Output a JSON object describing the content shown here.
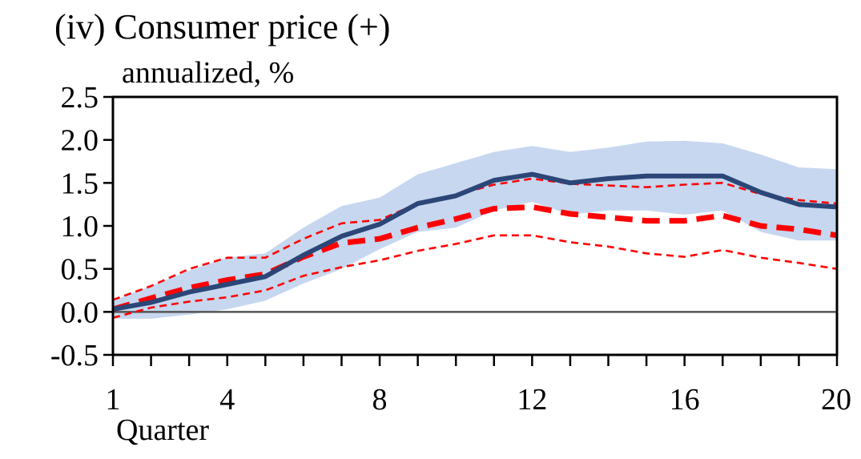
{
  "chart_data": {
    "type": "line",
    "title": "(iv) Consumer price (+)",
    "subtitle": "annualized, %",
    "xlabel": "Quarter",
    "ylabel": "",
    "x": [
      1,
      2,
      3,
      4,
      5,
      6,
      7,
      8,
      9,
      10,
      11,
      12,
      13,
      14,
      15,
      16,
      17,
      18,
      19,
      20
    ],
    "xlim": [
      1,
      20
    ],
    "xtick_values": [
      1,
      4,
      8,
      12,
      16,
      20
    ],
    "xtick_labels": [
      "1",
      "4",
      "8",
      "12",
      "16",
      "20"
    ],
    "ylim": [
      -0.5,
      2.5
    ],
    "ytick_values": [
      2.5,
      2.0,
      1.5,
      1.0,
      0.5,
      0.0,
      -0.5
    ],
    "ytick_labels": [
      "2.5",
      "2.0",
      "1.5",
      "1.0",
      "0.5",
      "0.0",
      "-0.5"
    ],
    "zero_line": true,
    "grid": false,
    "band": {
      "lower": [
        -0.08,
        -0.08,
        -0.03,
        0.03,
        0.13,
        0.33,
        0.5,
        0.73,
        0.93,
        0.98,
        1.18,
        1.28,
        1.13,
        1.18,
        1.18,
        1.13,
        1.18,
        0.93,
        0.83,
        0.83
      ],
      "upper": [
        0.13,
        0.3,
        0.48,
        0.63,
        0.68,
        0.98,
        1.23,
        1.33,
        1.6,
        1.73,
        1.86,
        1.93,
        1.86,
        1.91,
        1.98,
        1.99,
        1.96,
        1.83,
        1.68,
        1.66
      ],
      "color": "#c6d7ef"
    },
    "series": [
      {
        "values": [
          0.03,
          0.11,
          0.23,
          0.32,
          0.41,
          0.66,
          0.88,
          1.02,
          1.26,
          1.35,
          1.53,
          1.6,
          1.5,
          1.55,
          1.58,
          1.58,
          1.58,
          1.39,
          1.25,
          1.22
        ],
        "color": "#2b4677",
        "style": "solid"
      },
      {
        "values": [
          0.03,
          0.16,
          0.28,
          0.37,
          0.44,
          0.64,
          0.8,
          0.85,
          0.98,
          1.08,
          1.2,
          1.22,
          1.14,
          1.1,
          1.06,
          1.06,
          1.12,
          1.0,
          0.96,
          0.89
        ],
        "color": "#ff0000",
        "style": "dashed-thick"
      },
      {
        "values": [
          0.14,
          0.3,
          0.5,
          0.63,
          0.63,
          0.85,
          1.03,
          1.07,
          1.26,
          1.36,
          1.48,
          1.55,
          1.49,
          1.47,
          1.45,
          1.48,
          1.5,
          1.37,
          1.3,
          1.26
        ],
        "color": "#ff0000",
        "style": "dashed-thin"
      },
      {
        "values": [
          -0.07,
          0.05,
          0.12,
          0.17,
          0.25,
          0.42,
          0.52,
          0.6,
          0.71,
          0.79,
          0.89,
          0.89,
          0.81,
          0.76,
          0.68,
          0.64,
          0.72,
          0.63,
          0.57,
          0.5
        ],
        "color": "#ff0000",
        "style": "dashed-thin"
      }
    ]
  }
}
